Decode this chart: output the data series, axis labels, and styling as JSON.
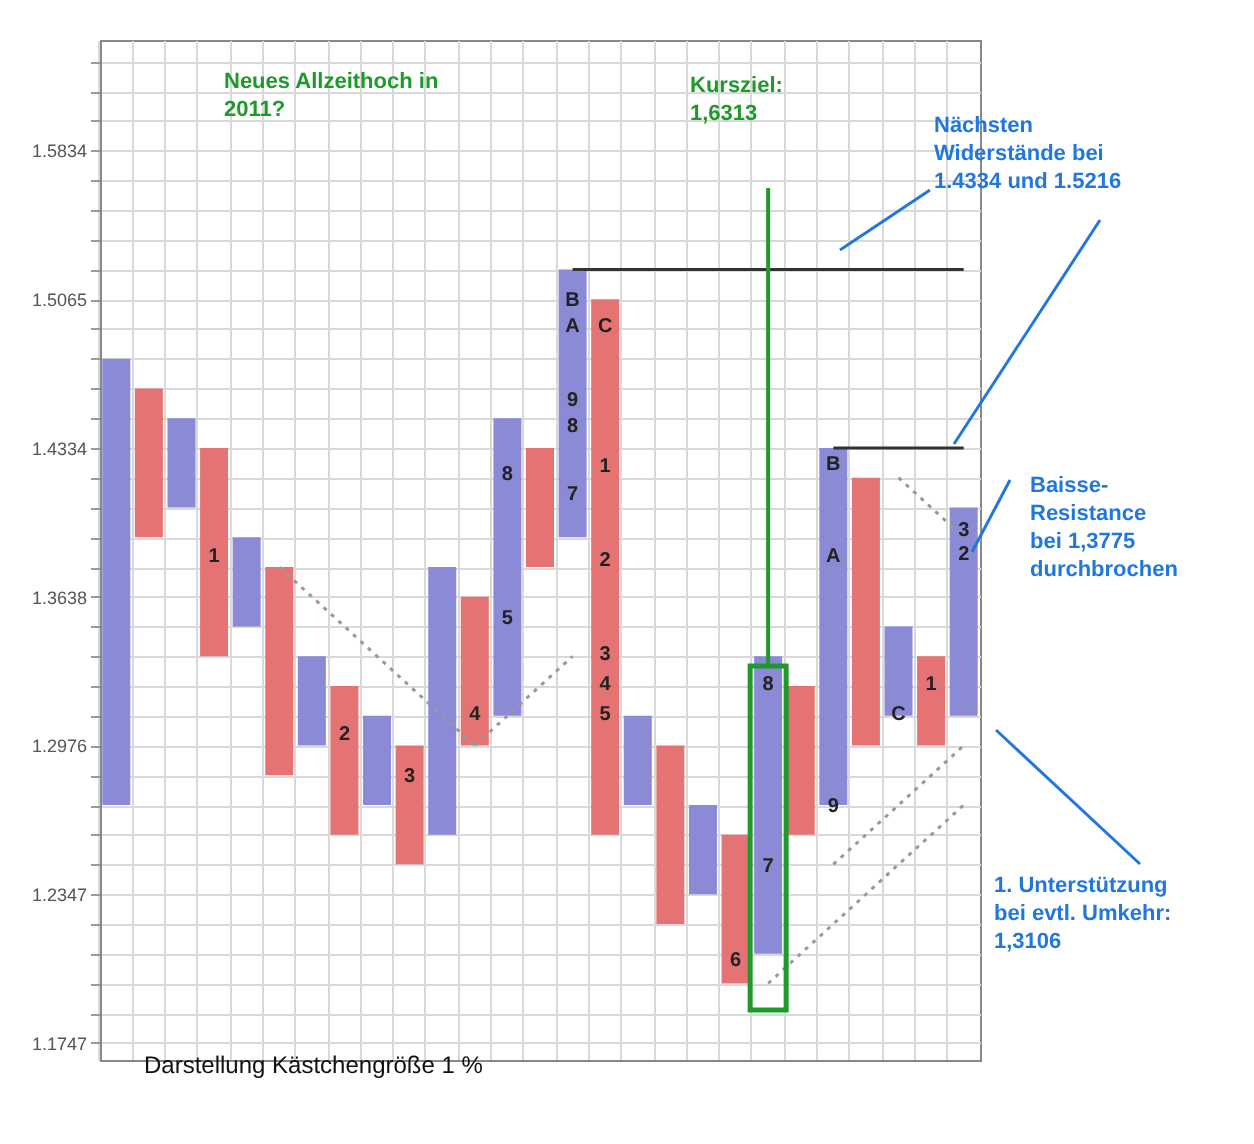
{
  "chart_data": {
    "type": "bar",
    "log": true,
    "grid": true,
    "tick_labels": "y",
    "categories": [
      null,
      null,
      null,
      null,
      null,
      null,
      null,
      null,
      null,
      null,
      null,
      null,
      null,
      null,
      null,
      null,
      null,
      null,
      null,
      null,
      null,
      null,
      null,
      null,
      null,
      null,
      null
    ],
    "base": [
      1.272,
      1.3912,
      1.4051,
      1.3369,
      1.3503,
      1.2847,
      1.2976,
      1.2594,
      1.272,
      1.247,
      1.2594,
      1.2976,
      1.3106,
      1.3774,
      1.3912,
      1.2594,
      1.272,
      1.2224,
      1.2346,
      1.1983,
      1.2103,
      1.2594,
      1.272,
      1.2976,
      1.3106,
      1.2976,
      1.3106
    ],
    "values": [
      0.2048,
      0.071,
      0.0426,
      0.0965,
      0.0409,
      0.0927,
      0.0393,
      0.0643,
      0.0386,
      0.0506,
      0.118,
      0.0662,
      0.1371,
      0.056,
      0.1304,
      0.2471,
      0.0386,
      0.0752,
      0.0374,
      0.0611,
      0.1266,
      0.0643,
      0.1614,
      0.1216,
      0.0397,
      0.0393,
      0.0945
    ],
    "colors": [
      "#8a8ad6",
      "#e57373",
      "#8a8ad6",
      "#e57373",
      "#8a8ad6",
      "#e57373",
      "#8a8ad6",
      "#e57373",
      "#8a8ad6",
      "#e57373",
      "#8a8ad6",
      "#e57373",
      "#8a8ad6",
      "#e57373",
      "#8a8ad6",
      "#e57373",
      "#8a8ad6",
      "#e57373",
      "#8a8ad6",
      "#e57373",
      "#8a8ad6",
      "#e57373",
      "#8a8ad6",
      "#e57373",
      "#8a8ad6",
      "#e57373",
      "#8a8ad6"
    ],
    "series": [
      {
        "type": "line",
        "color": "#999999",
        "line_style": "dotted",
        "values": [
          null,
          null,
          null,
          null,
          null,
          1.3774,
          1.3638,
          1.3503,
          1.3369,
          1.3237,
          1.3106,
          1.2976,
          null,
          null,
          null,
          null,
          null,
          null,
          null,
          null,
          null,
          null,
          null,
          null,
          null,
          null,
          null
        ]
      },
      {
        "type": "line",
        "color": "#999999",
        "line_style": "dotted",
        "values": [
          null,
          null,
          null,
          null,
          null,
          null,
          null,
          null,
          null,
          null,
          null,
          1.2976,
          1.3106,
          1.3237,
          1.3369,
          null,
          null,
          null,
          null,
          null,
          null,
          null,
          null,
          null,
          null,
          null,
          null
        ]
      },
      {
        "type": "line",
        "color": "#999999",
        "line_style": "dotted",
        "values": [
          null,
          null,
          null,
          null,
          null,
          null,
          null,
          null,
          null,
          null,
          null,
          null,
          null,
          null,
          null,
          null,
          null,
          null,
          null,
          null,
          1.1983,
          1.2103,
          1.2224,
          1.2346,
          1.247,
          1.2594,
          1.272
        ]
      },
      {
        "type": "line",
        "color": "#999999",
        "line_style": "dotted",
        "values": [
          null,
          null,
          null,
          null,
          null,
          null,
          null,
          null,
          null,
          null,
          null,
          null,
          null,
          null,
          null,
          null,
          null,
          null,
          null,
          null,
          null,
          null,
          1.247,
          1.2594,
          1.272,
          1.2847,
          1.2976
        ]
      },
      {
        "type": "line",
        "color": "#999999",
        "line_style": "dotted",
        "values": [
          null,
          null,
          null,
          null,
          null,
          null,
          null,
          null,
          null,
          null,
          null,
          null,
          null,
          null,
          null,
          null,
          null,
          null,
          null,
          null,
          null,
          null,
          null,
          null,
          1.4192,
          1.4051,
          1.3912
        ]
      },
      {
        "type": "line",
        "color": "#333333",
        "line_style": "solid",
        "values": [
          null,
          null,
          null,
          null,
          null,
          null,
          null,
          null,
          null,
          null,
          null,
          null,
          null,
          null,
          1.5216,
          1.5216,
          1.5216,
          1.5216,
          1.5216,
          1.5216,
          1.5216,
          1.5216,
          1.5216,
          1.5216,
          1.5216,
          1.5216,
          1.5216
        ]
      },
      {
        "type": "line",
        "color": "#333333",
        "line_style": "solid",
        "values": [
          null,
          null,
          null,
          null,
          null,
          null,
          null,
          null,
          null,
          null,
          null,
          null,
          null,
          null,
          null,
          null,
          null,
          null,
          null,
          null,
          null,
          null,
          1.4334,
          1.4334,
          1.4334,
          1.4334,
          1.4334
        ]
      }
    ],
    "ylim": [
      1.168,
      1.643
    ],
    "yticks": [
      1.1747,
      {
        "value": 1.1864,
        "label": null
      },
      {
        "value": 1.1983,
        "label": null
      },
      {
        "value": 1.2103,
        "label": null
      },
      {
        "value": 1.2224,
        "label": null
      },
      1.2347,
      {
        "value": 1.247,
        "label": null
      },
      {
        "value": 1.2594,
        "label": null
      },
      {
        "value": 1.272,
        "label": null
      },
      {
        "value": 1.2847,
        "label": null
      },
      1.2976,
      {
        "value": 1.3106,
        "label": null
      },
      {
        "value": 1.3237,
        "label": null
      },
      {
        "value": 1.3369,
        "label": null
      },
      {
        "value": 1.3503,
        "label": null
      },
      1.3638,
      {
        "value": 1.3774,
        "label": null
      },
      {
        "value": 1.3912,
        "label": null
      },
      {
        "value": 1.4051,
        "label": null
      },
      {
        "value": 1.4192,
        "label": null
      },
      1.4334,
      {
        "value": 1.4477,
        "label": null
      },
      {
        "value": 1.4622,
        "label": null
      },
      {
        "value": 1.4768,
        "label": null
      },
      {
        "value": 1.4916,
        "label": null
      },
      1.5065,
      {
        "value": 1.5216,
        "label": null
      },
      {
        "value": 1.5368,
        "label": null
      },
      {
        "value": 1.5522,
        "label": null
      },
      {
        "value": 1.5677,
        "label": null
      },
      1.5834,
      {
        "value": 1.5992,
        "label": null
      },
      {
        "value": 1.6152,
        "label": null
      },
      {
        "value": 1.6313,
        "label": null
      }
    ],
    "annotations": [
      "Neues Allzeithoch in 2011?",
      "Kursziel: 1,6313",
      "Nächsten Widerstände bei 1.4334 und 1.5216",
      "Baisse-Resistance bei 1,3775 durchbrochen",
      "1. Unterstützung bei evtl. Umkehr: 1,3106",
      "Darstellung Kästchengröße 1 %",
      "1",
      "2",
      "3",
      "4",
      "5",
      "8",
      "7",
      "8",
      "9",
      "A",
      "B",
      "C",
      "1",
      "2",
      "3",
      "4",
      "5",
      "6",
      "8",
      "7",
      "B",
      "A",
      "9",
      "C",
      "1",
      "2",
      "3"
    ]
  }
}
